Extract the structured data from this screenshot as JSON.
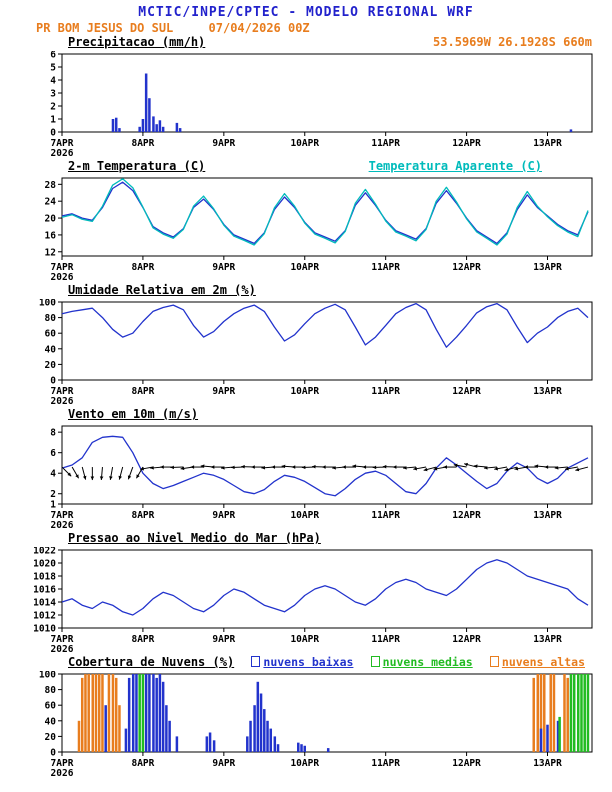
{
  "header": {
    "agency_title": "MCTIC/INPE/CPTEC - MODELO REGIONAL WRF",
    "station": "PR BOM JESUS DO SUL",
    "run_datetime": "07/04/2026 00Z",
    "coords": "53.5969W 26.1928S 660m"
  },
  "colors": {
    "title": "#2222cc",
    "accent_orange": "#e87d1e",
    "line_blue": "#2233cc",
    "cyan": "#00bbbb",
    "green": "#22bb22",
    "black": "#000000"
  },
  "chart_common": {
    "xlim": [
      0,
      6.55
    ],
    "xticks": [
      {
        "v": 0,
        "label": "7APR",
        "sub": "2026"
      },
      {
        "v": 1,
        "label": "8APR"
      },
      {
        "v": 2,
        "label": "9APR"
      },
      {
        "v": 3,
        "label": "10APR"
      },
      {
        "v": 4,
        "label": "11APR"
      },
      {
        "v": 5,
        "label": "12APR"
      },
      {
        "v": 6,
        "label": "13APR"
      }
    ]
  },
  "chart_data": [
    {
      "type": "bar",
      "title": "Precipitacao (mm/h)",
      "ylim": [
        0,
        6
      ],
      "yticks": [
        0,
        1,
        2,
        3,
        4,
        5,
        6
      ],
      "bars": [
        {
          "name": "precipitacao",
          "color": "line_blue",
          "width": 2.5,
          "points": [
            [
              0.63,
              1.0
            ],
            [
              0.67,
              1.1
            ],
            [
              0.71,
              0.3
            ],
            [
              0.96,
              0.4
            ],
            [
              1.0,
              1.0
            ],
            [
              1.04,
              4.5
            ],
            [
              1.08,
              2.6
            ],
            [
              1.13,
              1.2
            ],
            [
              1.17,
              0.6
            ],
            [
              1.21,
              0.9
            ],
            [
              1.25,
              0.4
            ],
            [
              1.42,
              0.7
            ],
            [
              1.46,
              0.3
            ],
            [
              6.29,
              0.2
            ]
          ]
        }
      ]
    },
    {
      "type": "line",
      "title": "2-m Temperatura (C)",
      "right_label": "Temperatura Aparente (C)",
      "ylim": [
        11,
        29.5
      ],
      "yticks": [
        12,
        16,
        20,
        24,
        28
      ],
      "series": [
        {
          "name": "2-m Temperatura (C)",
          "color": "line_blue",
          "x_start": 0,
          "x_step": 0.125,
          "values": [
            20.5,
            21.0,
            20.0,
            19.5,
            22.5,
            27.0,
            28.5,
            26.5,
            22.5,
            18.0,
            16.5,
            15.5,
            17.5,
            22.5,
            24.5,
            22.0,
            18.5,
            16.0,
            15.0,
            14.0,
            16.5,
            22.0,
            25.0,
            22.5,
            19.0,
            16.5,
            15.5,
            14.5,
            17.0,
            23.0,
            26.0,
            23.0,
            19.5,
            17.0,
            16.0,
            15.0,
            17.5,
            23.5,
            26.5,
            23.5,
            20.0,
            17.0,
            15.5,
            14.0,
            16.5,
            22.0,
            25.5,
            22.5,
            20.5,
            18.5,
            17.0,
            16.0,
            21.5
          ]
        },
        {
          "name": "Temperatura Aparente (C)",
          "color": "cyan",
          "x_start": 0,
          "x_step": 0.125,
          "values": [
            20.2,
            20.8,
            19.7,
            19.2,
            22.8,
            27.8,
            29.3,
            27.2,
            22.6,
            17.7,
            16.2,
            15.2,
            17.3,
            22.8,
            25.2,
            22.2,
            18.3,
            15.7,
            14.7,
            13.6,
            16.3,
            22.4,
            25.8,
            22.8,
            18.8,
            16.2,
            15.2,
            14.1,
            16.8,
            23.5,
            26.8,
            23.3,
            19.3,
            16.7,
            15.7,
            14.6,
            17.3,
            24.0,
            27.3,
            23.8,
            19.8,
            16.7,
            15.2,
            13.6,
            16.2,
            22.5,
            26.3,
            22.8,
            20.3,
            18.2,
            16.7,
            15.6,
            21.8
          ]
        }
      ]
    },
    {
      "type": "line",
      "title": "Umidade Relativa em 2m (%)",
      "ylim": [
        0,
        100
      ],
      "yticks": [
        0,
        20,
        40,
        60,
        80,
        100
      ],
      "series": [
        {
          "name": "Umidade Relativa",
          "color": "line_blue",
          "x_start": 0,
          "x_step": 0.125,
          "values": [
            85,
            88,
            90,
            92,
            80,
            65,
            55,
            60,
            75,
            88,
            93,
            96,
            90,
            70,
            55,
            62,
            75,
            85,
            92,
            96,
            88,
            68,
            50,
            58,
            72,
            85,
            92,
            97,
            90,
            68,
            45,
            55,
            70,
            85,
            93,
            98,
            90,
            65,
            42,
            55,
            70,
            86,
            94,
            98,
            90,
            68,
            48,
            60,
            68,
            80,
            88,
            92,
            80
          ]
        }
      ]
    },
    {
      "type": "line",
      "title": "Vento em 10m (m/s)",
      "ylim": [
        1,
        8.6
      ],
      "yticks": [
        1,
        2,
        4,
        6,
        8
      ],
      "series": [
        {
          "name": "Vento em 10m",
          "color": "line_blue",
          "x_start": 0,
          "x_step": 0.125,
          "values": [
            4.5,
            4.8,
            5.5,
            7.0,
            7.5,
            7.6,
            7.5,
            6.0,
            4.0,
            3.0,
            2.5,
            2.8,
            3.2,
            3.6,
            4.0,
            3.8,
            3.4,
            2.8,
            2.2,
            2.0,
            2.4,
            3.2,
            3.8,
            3.6,
            3.2,
            2.6,
            2.0,
            1.8,
            2.5,
            3.4,
            4.0,
            4.2,
            3.8,
            3.0,
            2.2,
            2.0,
            3.0,
            4.5,
            5.5,
            4.8,
            4.0,
            3.2,
            2.5,
            3.0,
            4.2,
            5.0,
            4.5,
            3.5,
            3.0,
            3.5,
            4.5,
            5.0,
            5.5
          ]
        }
      ],
      "arrows": {
        "name": "direcao-do-vento",
        "anchor": 4.6,
        "length": 13,
        "x_start": 0,
        "x_step": 0.125,
        "angles_deg": [
          45,
          60,
          75,
          90,
          95,
          100,
          105,
          110,
          120,
          170,
          175,
          180,
          178,
          172,
          180,
          185,
          180,
          175,
          178,
          182,
          180,
          176,
          180,
          184,
          180,
          178,
          182,
          180,
          175,
          180,
          185,
          180,
          178,
          182,
          180,
          175,
          170,
          165,
          170,
          180,
          190,
          195,
          185,
          175,
          170,
          165,
          170,
          180,
          185,
          180,
          175,
          170,
          165
        ]
      }
    },
    {
      "type": "line",
      "title": "Pressao ao Nivel Medio do Mar (hPa)",
      "ylim": [
        1010,
        1022
      ],
      "yticks": [
        1010,
        1012,
        1014,
        1016,
        1018,
        1020,
        1022
      ],
      "series": [
        {
          "name": "Pressao ao Nivel Medio do Mar",
          "color": "line_blue",
          "x_start": 0,
          "x_step": 0.125,
          "values": [
            1014,
            1014.5,
            1013.5,
            1013,
            1014,
            1013.5,
            1012.5,
            1012,
            1013,
            1014.5,
            1015.5,
            1015,
            1014,
            1013,
            1012.5,
            1013.5,
            1015,
            1016,
            1015.5,
            1014.5,
            1013.5,
            1013,
            1012.5,
            1013.5,
            1015,
            1016,
            1016.5,
            1016,
            1015,
            1014,
            1013.5,
            1014.5,
            1016,
            1017,
            1017.5,
            1017,
            1016,
            1015.5,
            1015,
            1016,
            1017.5,
            1019,
            1020,
            1020.5,
            1020,
            1019,
            1018,
            1017.5,
            1017,
            1016.5,
            1016,
            1014.5,
            1013.5
          ]
        }
      ]
    },
    {
      "type": "bar",
      "title": "Cobertura de Nuvens (%)",
      "ylim": [
        0,
        100
      ],
      "yticks": [
        0,
        20,
        40,
        60,
        80,
        100
      ],
      "legend": [
        {
          "label": "nuvens baixas",
          "color": "line_blue"
        },
        {
          "label": "nuvens medias",
          "color": "green"
        },
        {
          "label": "nuvens altas",
          "color": "accent_orange"
        }
      ],
      "bars": [
        {
          "name": "nuvens altas",
          "color": "accent_orange",
          "width": 2.5,
          "points": [
            [
              0.21,
              40
            ],
            [
              0.25,
              95
            ],
            [
              0.29,
              100
            ],
            [
              0.33,
              100
            ],
            [
              0.38,
              100
            ],
            [
              0.42,
              100
            ],
            [
              0.46,
              100
            ],
            [
              0.5,
              100
            ],
            [
              0.58,
              100
            ],
            [
              0.63,
              100
            ],
            [
              0.67,
              95
            ],
            [
              0.71,
              60
            ],
            [
              5.83,
              95
            ],
            [
              5.88,
              100
            ],
            [
              5.92,
              100
            ],
            [
              5.96,
              100
            ],
            [
              6.04,
              100
            ],
            [
              6.08,
              100
            ],
            [
              6.21,
              100
            ],
            [
              6.25,
              95
            ]
          ]
        },
        {
          "name": "nuvens baixas",
          "color": "line_blue",
          "width": 2.5,
          "points": [
            [
              0.54,
              60
            ],
            [
              0.79,
              30
            ],
            [
              0.83,
              95
            ],
            [
              0.88,
              100
            ],
            [
              0.92,
              100
            ],
            [
              1.04,
              100
            ],
            [
              1.08,
              100
            ],
            [
              1.13,
              100
            ],
            [
              1.17,
              95
            ],
            [
              1.21,
              100
            ],
            [
              1.25,
              90
            ],
            [
              1.29,
              60
            ],
            [
              1.33,
              40
            ],
            [
              1.42,
              20
            ],
            [
              1.79,
              20
            ],
            [
              1.83,
              25
            ],
            [
              1.88,
              15
            ],
            [
              2.29,
              20
            ],
            [
              2.33,
              40
            ],
            [
              2.38,
              60
            ],
            [
              2.42,
              90
            ],
            [
              2.46,
              75
            ],
            [
              2.5,
              55
            ],
            [
              2.54,
              40
            ],
            [
              2.58,
              30
            ],
            [
              2.63,
              20
            ],
            [
              2.67,
              10
            ],
            [
              2.92,
              12
            ],
            [
              2.96,
              10
            ],
            [
              3.0,
              8
            ],
            [
              3.29,
              5
            ],
            [
              5.92,
              30
            ],
            [
              6.0,
              35
            ],
            [
              6.13,
              40
            ]
          ]
        },
        {
          "name": "nuvens medias",
          "color": "green",
          "width": 2.5,
          "points": [
            [
              0.96,
              100
            ],
            [
              1.0,
              100
            ],
            [
              6.15,
              45
            ],
            [
              6.29,
              100
            ],
            [
              6.33,
              100
            ],
            [
              6.38,
              100
            ],
            [
              6.42,
              100
            ],
            [
              6.46,
              100
            ],
            [
              6.5,
              100
            ]
          ]
        }
      ]
    }
  ]
}
